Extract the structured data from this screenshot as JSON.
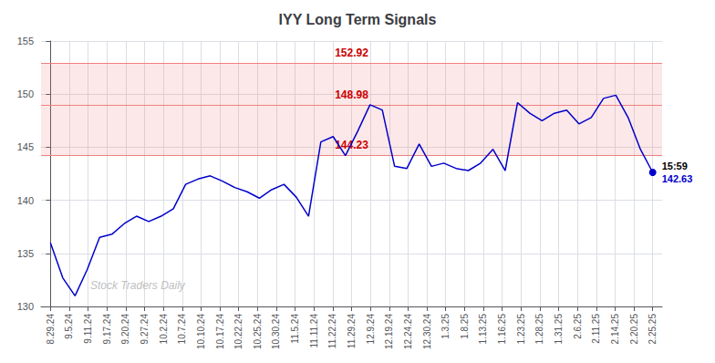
{
  "chart_data": {
    "type": "line",
    "title": "IYY Long Term Signals",
    "color": "#0000cc",
    "x": [
      0,
      0.653061,
      1.306122,
      1.959184,
      2.612245,
      3.265306,
      3.918367,
      4.571429,
      5.22449,
      5.877551,
      6.530612,
      7.183673,
      7.836735,
      8.489796,
      9.142857,
      9.795918,
      10.44898,
      11.102041,
      11.755102,
      12.408163,
      13.061224,
      13.714286,
      14.367347,
      15.020408,
      15.673469,
      16.326531,
      16.979592,
      17.632653,
      18.285714,
      18.938776,
      19.591837,
      20.244898,
      20.897959,
      21.55102,
      22.204082,
      22.857143,
      23.510204,
      24.163265,
      24.816327,
      25.469388,
      26.122449,
      26.77551,
      27.428571,
      28.081633,
      28.734694,
      29.387755,
      30.040816,
      30.693878,
      31.346939,
      32
    ],
    "values": [
      136.0,
      132.7,
      131.0,
      133.5,
      136.5,
      136.8,
      137.8,
      138.5,
      138.0,
      138.5,
      139.2,
      141.5,
      142.0,
      142.3,
      141.8,
      141.2,
      140.8,
      140.2,
      141.0,
      141.5,
      140.3,
      138.5,
      145.5,
      146.0,
      144.2,
      146.5,
      149.0,
      148.5,
      143.2,
      143.0,
      145.3,
      143.2,
      143.5,
      143.0,
      142.8,
      143.5,
      144.8,
      142.8,
      149.2,
      148.2,
      147.5,
      148.2,
      148.5,
      147.2,
      147.8,
      149.6,
      149.9,
      147.8,
      144.8,
      142.63
    ],
    "xlim": [
      -0.5,
      32.5
    ],
    "xticks": [
      {
        "value": 0,
        "label": "8.29.24"
      },
      {
        "value": 1,
        "label": "9.5.24"
      },
      {
        "value": 2,
        "label": "9.11.24"
      },
      {
        "value": 3,
        "label": "9.17.24"
      },
      {
        "value": 4,
        "label": "9.20.24"
      },
      {
        "value": 5,
        "label": "9.27.24"
      },
      {
        "value": 6,
        "label": "10.2.24"
      },
      {
        "value": 7,
        "label": "10.7.24"
      },
      {
        "value": 8,
        "label": "10.10.24"
      },
      {
        "value": 9,
        "label": "10.17.24"
      },
      {
        "value": 10,
        "label": "10.22.24"
      },
      {
        "value": 11,
        "label": "10.25.24"
      },
      {
        "value": 12,
        "label": "10.30.24"
      },
      {
        "value": 13,
        "label": "11.5.24"
      },
      {
        "value": 14,
        "label": "11.11.24"
      },
      {
        "value": 15,
        "label": "11.22.24"
      },
      {
        "value": 16,
        "label": "11.29.24"
      },
      {
        "value": 17,
        "label": "12.9.24"
      },
      {
        "value": 18,
        "label": "12.19.24"
      },
      {
        "value": 19,
        "label": "12.24.24"
      },
      {
        "value": 20,
        "label": "12.30.24"
      },
      {
        "value": 21,
        "label": "1.3.25"
      },
      {
        "value": 22,
        "label": "1.8.25"
      },
      {
        "value": 23,
        "label": "1.13.25"
      },
      {
        "value": 24,
        "label": "1.16.25"
      },
      {
        "value": 25,
        "label": "1.23.25"
      },
      {
        "value": 26,
        "label": "1.28.25"
      },
      {
        "value": 27,
        "label": "1.31.25"
      },
      {
        "value": 28,
        "label": "2.6.25"
      },
      {
        "value": 29,
        "label": "2.11.25"
      },
      {
        "value": 30,
        "label": "2.14.25"
      },
      {
        "value": 31,
        "label": "2.20.25"
      },
      {
        "value": 32,
        "label": "2.25.25"
      }
    ],
    "ylim": [
      130,
      155
    ],
    "yticks": [
      130,
      135,
      140,
      145,
      150,
      155
    ],
    "grid": true,
    "hlines": {
      "values": [
        144.23,
        148.98,
        152.92
      ],
      "color": "#f08080",
      "fill_color": "#f08080",
      "label_color": "#cc0000"
    },
    "watermark": {
      "text": "Stock Traders Daily",
      "color": "#c0c0c0"
    },
    "annotations": [
      {
        "text": "15:59",
        "color": "#000000"
      },
      {
        "text": "142.63",
        "color": "#0000cc"
      }
    ]
  }
}
